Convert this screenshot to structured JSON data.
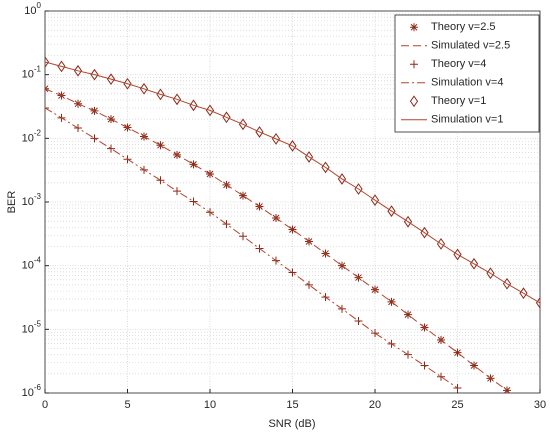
{
  "chart_data": {
    "type": "line",
    "xlabel": "SNR (dB)",
    "ylabel": "BER",
    "log_y": true,
    "grid": true,
    "minor_grid": true,
    "legend": "upper right",
    "x": [
      0,
      1,
      2,
      3,
      4,
      5,
      6,
      7,
      8,
      9,
      10,
      11,
      12,
      13,
      14,
      15,
      16,
      17,
      18,
      19,
      20,
      21,
      22,
      23,
      24,
      25,
      26,
      27,
      28,
      29,
      30
    ],
    "xlim": [
      0,
      30
    ],
    "xticks": [
      0,
      5,
      10,
      15,
      20,
      25,
      30
    ],
    "ylim": [
      1e-06,
      1
    ],
    "yticks": [
      {
        "value": 1e-06,
        "label": "10^-6"
      },
      {
        "value": 1e-05,
        "label": "10^-5"
      },
      {
        "value": 0.0001,
        "label": "10^-4"
      },
      {
        "value": 0.001,
        "label": "10^-3"
      },
      {
        "value": 0.01,
        "label": "10^-2"
      },
      {
        "value": 0.1,
        "label": "10^-1"
      },
      {
        "value": 1,
        "label": "10^0"
      }
    ],
    "series": [
      {
        "name": "Theory v=2.5",
        "color": "#8b2a1a",
        "marker": "asterisk",
        "values": [
          0.06,
          0.047,
          0.035,
          0.027,
          0.02,
          0.0148,
          0.0107,
          0.0078,
          0.0055,
          0.0039,
          0.00275,
          0.00186,
          0.00126,
          0.00085,
          0.00056,
          0.00037,
          0.00024,
          0.000155,
          0.0001,
          6.5e-05,
          4.2e-05,
          2.7e-05,
          1.7e-05,
          1.07e-05,
          6.8e-06,
          4.3e-06,
          2.7e-06,
          1.7e-06,
          1.1e-06,
          null,
          null
        ]
      },
      {
        "name": "Simulated v=2.5",
        "color": "#b0452c",
        "linestyle": "dashed",
        "values": [
          0.06,
          0.047,
          0.035,
          0.027,
          0.02,
          0.0148,
          0.0107,
          0.0078,
          0.0055,
          0.0039,
          0.00275,
          0.00186,
          0.00126,
          0.00085,
          0.00056,
          0.00037,
          0.00024,
          0.000155,
          0.0001,
          6.5e-05,
          4.2e-05,
          2.7e-05,
          1.7e-05,
          1.07e-05,
          6.8e-06,
          4.3e-06,
          2.7e-06,
          1.7e-06,
          1.1e-06,
          null,
          null
        ]
      },
      {
        "name": "Theory  v=4",
        "color": "#8b2a1a",
        "marker": "plus",
        "values": [
          0.03,
          0.021,
          0.0145,
          0.01,
          0.0069,
          0.0047,
          0.0032,
          0.0022,
          0.00148,
          0.00102,
          0.00069,
          0.00045,
          0.00029,
          0.000186,
          0.00012,
          7.8e-05,
          5e-05,
          3.2e-05,
          2.1e-05,
          1.35e-05,
          8.7e-06,
          5.9e-06,
          4e-06,
          2.7e-06,
          1.8e-06,
          1.2e-06,
          null,
          null,
          null,
          null,
          null
        ]
      },
      {
        "name": "Simulation  v=4",
        "color": "#b0452c",
        "linestyle": "dashdot",
        "values": [
          0.03,
          0.021,
          0.0145,
          0.01,
          0.0069,
          0.0047,
          0.0032,
          0.0022,
          0.00148,
          0.00102,
          0.00069,
          0.00045,
          0.00029,
          0.000186,
          0.00012,
          7.8e-05,
          5e-05,
          3.2e-05,
          2.1e-05,
          1.35e-05,
          8.7e-06,
          5.9e-06,
          4e-06,
          2.7e-06,
          1.8e-06,
          1.2e-06,
          null,
          null,
          null,
          null,
          null
        ]
      },
      {
        "name": "Theory v=1",
        "color": "#8b2a1a",
        "marker": "diamond",
        "values": [
          0.158,
          0.135,
          0.115,
          0.1,
          0.085,
          0.072,
          0.06,
          0.049,
          0.041,
          0.033,
          0.0275,
          0.0214,
          0.0166,
          0.0126,
          0.0098,
          0.0076,
          0.0051,
          0.0035,
          0.0023,
          0.0016,
          0.00107,
          0.00072,
          0.00049,
          0.00033,
          0.00022,
          0.00015,
          0.000107,
          7.6e-05,
          5.2e-05,
          3.7e-05,
          2.6e-05
        ]
      },
      {
        "name": "Simulation v=1",
        "color": "#b0452c",
        "linestyle": "solid",
        "values": [
          0.158,
          0.135,
          0.115,
          0.1,
          0.085,
          0.072,
          0.06,
          0.049,
          0.041,
          0.033,
          0.0275,
          0.0214,
          0.0166,
          0.0126,
          0.0098,
          0.0076,
          0.0051,
          0.0035,
          0.0023,
          0.0016,
          0.00107,
          0.00072,
          0.00049,
          0.00033,
          0.00022,
          0.00015,
          0.000107,
          7.6e-05,
          5.2e-05,
          3.7e-05,
          2.6e-05
        ]
      }
    ]
  }
}
